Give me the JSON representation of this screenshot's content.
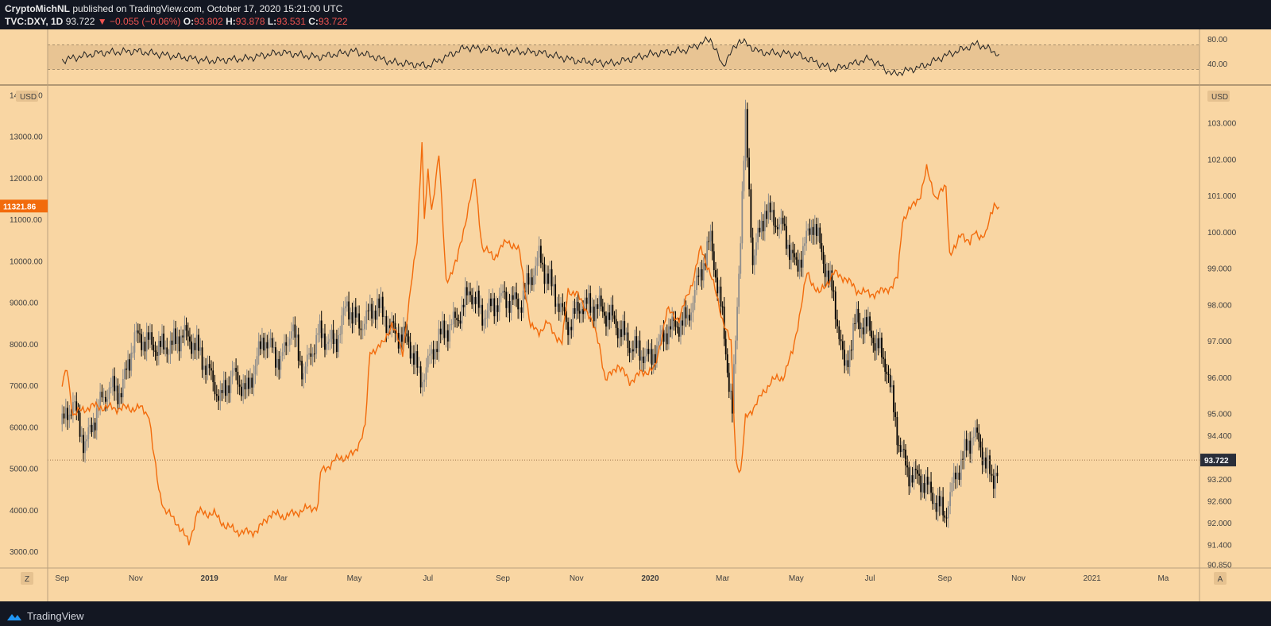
{
  "header": {
    "author": "CryptoMichNL",
    "published": "published on TradingView.com, October 17, 2020 15:21:00 UTC",
    "symbol": "TVC:DXY, 1D",
    "last": "93.722",
    "change": "−0.055 (−0.06%)",
    "o_label": "O:",
    "o": "93.802",
    "h_label": "H:",
    "h": "93.878",
    "l_label": "L:",
    "l": "93.531",
    "c_label": "C:",
    "c": "93.722"
  },
  "footer": {
    "brand": "TradingView",
    "brand_icon": "tradingview-logo-icon"
  },
  "colors": {
    "background": "#f9d6a3",
    "rsi_band": "#e8c493",
    "btc_line": "#f26b0c",
    "candle_up": "#8c8c8c",
    "candle_down": "#000000",
    "price_label_bg": "#2a2e39",
    "btc_label_bg": "#f26b0c"
  },
  "chart_data": {
    "type": "line",
    "left_axis": {
      "unit_label": "USD",
      "ticks": [
        "14000.00",
        "13000.00",
        "12000.00",
        "11000.00",
        "10000.00",
        "9000.00",
        "8000.00",
        "7000.00",
        "6000.00",
        "5000.00",
        "4000.00",
        "3000.00"
      ],
      "current_label": "11321.86"
    },
    "right_axis": {
      "unit_label": "USD",
      "ticks": [
        "103.000",
        "102.000",
        "101.000",
        "100.000",
        "99.000",
        "98.000",
        "97.000",
        "96.000",
        "95.000",
        "94.400",
        "93.200",
        "92.600",
        "92.000",
        "91.400",
        "90.850"
      ],
      "current_label": "93.722"
    },
    "rsi_axis": {
      "ticks": [
        "80.00",
        "40.00"
      ]
    },
    "x_axis": [
      {
        "label": "Sep",
        "date": "2018-09"
      },
      {
        "label": "Nov",
        "date": "2018-11"
      },
      {
        "label": "2019",
        "date": "2019-01",
        "bold": true
      },
      {
        "label": "Mar",
        "date": "2019-03"
      },
      {
        "label": "May",
        "date": "2019-05"
      },
      {
        "label": "Jul",
        "date": "2019-07"
      },
      {
        "label": "Sep",
        "date": "2019-09"
      },
      {
        "label": "Nov",
        "date": "2019-11"
      },
      {
        "label": "2020",
        "date": "2020-01",
        "bold": true
      },
      {
        "label": "Mar",
        "date": "2020-03"
      },
      {
        "label": "May",
        "date": "2020-05"
      },
      {
        "label": "Jul",
        "date": "2020-07"
      },
      {
        "label": "Sep",
        "date": "2020-09"
      },
      {
        "label": "Nov",
        "date": "2020-11"
      },
      {
        "label": "2021",
        "date": "2021-01"
      },
      {
        "label": "Ma",
        "date": "2021-03"
      }
    ],
    "corner_buttons": [
      "Z",
      "A"
    ],
    "series": [
      {
        "axis": "left",
        "kind": "line",
        "points": [
          [
            "2018-09-01",
            7000
          ],
          [
            "2018-09-05",
            7400
          ],
          [
            "2018-09-10",
            6300
          ],
          [
            "2018-09-25",
            6500
          ],
          [
            "2018-10-15",
            6450
          ],
          [
            "2018-11-05",
            6450
          ],
          [
            "2018-11-12",
            6300
          ],
          [
            "2018-11-15",
            5500
          ],
          [
            "2018-11-20",
            4500
          ],
          [
            "2018-11-25",
            4000
          ],
          [
            "2018-12-05",
            3700
          ],
          [
            "2018-12-15",
            3200
          ],
          [
            "2018-12-22",
            3950
          ],
          [
            "2019-01-05",
            3900
          ],
          [
            "2019-01-15",
            3600
          ],
          [
            "2019-01-28",
            3450
          ],
          [
            "2019-02-10",
            3500
          ],
          [
            "2019-02-20",
            3900
          ],
          [
            "2019-03-05",
            3850
          ],
          [
            "2019-03-20",
            4000
          ],
          [
            "2019-04-01",
            4100
          ],
          [
            "2019-04-03",
            4900
          ],
          [
            "2019-04-15",
            5200
          ],
          [
            "2019-05-01",
            5350
          ],
          [
            "2019-05-10",
            6000
          ],
          [
            "2019-05-14",
            7800
          ],
          [
            "2019-05-25",
            8000
          ],
          [
            "2019-06-01",
            8500
          ],
          [
            "2019-06-10",
            7800
          ],
          [
            "2019-06-22",
            10500
          ],
          [
            "2019-06-26",
            12900
          ],
          [
            "2019-06-28",
            11000
          ],
          [
            "2019-07-01",
            12100
          ],
          [
            "2019-07-04",
            11200
          ],
          [
            "2019-07-10",
            12600
          ],
          [
            "2019-07-16",
            9500
          ],
          [
            "2019-07-25",
            10000
          ],
          [
            "2019-08-05",
            11500
          ],
          [
            "2019-08-09",
            12000
          ],
          [
            "2019-08-15",
            10300
          ],
          [
            "2019-08-25",
            10100
          ],
          [
            "2019-09-05",
            10500
          ],
          [
            "2019-09-15",
            10200
          ],
          [
            "2019-09-24",
            8400
          ],
          [
            "2019-10-01",
            8300
          ],
          [
            "2019-10-08",
            8500
          ],
          [
            "2019-10-20",
            8000
          ],
          [
            "2019-10-25",
            9300
          ],
          [
            "2019-11-01",
            9200
          ],
          [
            "2019-11-10",
            8800
          ],
          [
            "2019-11-20",
            8000
          ],
          [
            "2019-11-25",
            7100
          ],
          [
            "2019-12-05",
            7500
          ],
          [
            "2019-12-15",
            7100
          ],
          [
            "2019-12-25",
            7300
          ],
          [
            "2020-01-05",
            7400
          ],
          [
            "2020-01-15",
            8800
          ],
          [
            "2020-01-25",
            8600
          ],
          [
            "2020-02-05",
            9500
          ],
          [
            "2020-02-12",
            10300
          ],
          [
            "2020-02-20",
            9700
          ],
          [
            "2020-03-01",
            8600
          ],
          [
            "2020-03-08",
            8000
          ],
          [
            "2020-03-12",
            5200
          ],
          [
            "2020-03-16",
            4900
          ],
          [
            "2020-03-20",
            6200
          ],
          [
            "2020-04-01",
            6700
          ],
          [
            "2020-04-10",
            7100
          ],
          [
            "2020-04-20",
            7200
          ],
          [
            "2020-04-28",
            7800
          ],
          [
            "2020-05-05",
            8900
          ],
          [
            "2020-05-10",
            9700
          ],
          [
            "2020-05-20",
            9200
          ],
          [
            "2020-06-01",
            9700
          ],
          [
            "2020-06-10",
            9600
          ],
          [
            "2020-06-20",
            9300
          ],
          [
            "2020-07-01",
            9200
          ],
          [
            "2020-07-10",
            9250
          ],
          [
            "2020-07-20",
            9400
          ],
          [
            "2020-07-24",
            9600
          ],
          [
            "2020-07-28",
            11000
          ],
          [
            "2020-08-05",
            11300
          ],
          [
            "2020-08-12",
            11600
          ],
          [
            "2020-08-17",
            12200
          ],
          [
            "2020-08-25",
            11500
          ],
          [
            "2020-09-02",
            11800
          ],
          [
            "2020-09-05",
            10200
          ],
          [
            "2020-09-10",
            10300
          ],
          [
            "2020-09-15",
            10700
          ],
          [
            "2020-09-22",
            10400
          ],
          [
            "2020-09-26",
            10700
          ],
          [
            "2020-10-01",
            10600
          ],
          [
            "2020-10-05",
            10600
          ],
          [
            "2020-10-09",
            11100
          ],
          [
            "2020-10-12",
            11400
          ],
          [
            "2020-10-16",
            11300
          ]
        ]
      },
      {
        "axis": "right",
        "kind": "candlestick",
        "points": [
          [
            "2018-09-01",
            94.7
          ],
          [
            "2018-09-10",
            95.3
          ],
          [
            "2018-09-20",
            94.1
          ],
          [
            "2018-10-01",
            95.2
          ],
          [
            "2018-10-10",
            95.7
          ],
          [
            "2018-10-20",
            95.6
          ],
          [
            "2018-10-31",
            97.1
          ],
          [
            "2018-11-10",
            97.0
          ],
          [
            "2018-11-20",
            96.8
          ],
          [
            "2018-12-01",
            96.9
          ],
          [
            "2018-12-10",
            97.2
          ],
          [
            "2018-12-20",
            96.9
          ],
          [
            "2019-01-01",
            96.1
          ],
          [
            "2019-01-10",
            95.4
          ],
          [
            "2019-01-20",
            96.1
          ],
          [
            "2019-02-01",
            95.6
          ],
          [
            "2019-02-15",
            97.1
          ],
          [
            "2019-03-01",
            96.4
          ],
          [
            "2019-03-10",
            97.4
          ],
          [
            "2019-03-20",
            96.1
          ],
          [
            "2019-04-01",
            97.2
          ],
          [
            "2019-04-15",
            96.9
          ],
          [
            "2019-04-25",
            98.0
          ],
          [
            "2019-05-05",
            97.4
          ],
          [
            "2019-05-20",
            98.0
          ],
          [
            "2019-06-01",
            97.3
          ],
          [
            "2019-06-15",
            97.0
          ],
          [
            "2019-06-25",
            95.9
          ],
          [
            "2019-07-10",
            97.1
          ],
          [
            "2019-07-25",
            97.6
          ],
          [
            "2019-08-05",
            98.4
          ],
          [
            "2019-08-15",
            97.7
          ],
          [
            "2019-09-01",
            98.2
          ],
          [
            "2019-09-15",
            98.0
          ],
          [
            "2019-10-01",
            99.3
          ],
          [
            "2019-10-10",
            98.6
          ],
          [
            "2019-10-25",
            97.4
          ],
          [
            "2019-11-05",
            98.0
          ],
          [
            "2019-11-20",
            97.9
          ],
          [
            "2019-12-01",
            97.6
          ],
          [
            "2019-12-15",
            96.9
          ],
          [
            "2020-01-01",
            96.5
          ],
          [
            "2020-01-15",
            97.3
          ],
          [
            "2020-02-01",
            97.6
          ],
          [
            "2020-02-10",
            98.7
          ],
          [
            "2020-02-20",
            99.8
          ],
          [
            "2020-03-01",
            97.6
          ],
          [
            "2020-03-09",
            95.0
          ],
          [
            "2020-03-20",
            103.0
          ],
          [
            "2020-03-26",
            99.2
          ],
          [
            "2020-04-05",
            100.6
          ],
          [
            "2020-04-20",
            100.1
          ],
          [
            "2020-05-01",
            99.0
          ],
          [
            "2020-05-15",
            100.3
          ],
          [
            "2020-06-01",
            98.2
          ],
          [
            "2020-06-10",
            96.2
          ],
          [
            "2020-06-20",
            97.6
          ],
          [
            "2020-07-01",
            97.3
          ],
          [
            "2020-07-15",
            96.3
          ],
          [
            "2020-07-25",
            94.2
          ],
          [
            "2020-08-01",
            93.4
          ],
          [
            "2020-08-15",
            93.1
          ],
          [
            "2020-09-01",
            92.2
          ],
          [
            "2020-09-10",
            93.3
          ],
          [
            "2020-09-25",
            94.5
          ],
          [
            "2020-10-05",
            93.7
          ],
          [
            "2020-10-10",
            93.1
          ],
          [
            "2020-10-16",
            93.72
          ]
        ]
      }
    ],
    "rsi": {
      "band": [
        30,
        70
      ],
      "points": [
        [
          "2018-09-01",
          45
        ],
        [
          "2018-10-01",
          57
        ],
        [
          "2018-11-01",
          60
        ],
        [
          "2018-12-01",
          52
        ],
        [
          "2019-01-01",
          44
        ],
        [
          "2019-02-01",
          48
        ],
        [
          "2019-03-01",
          58
        ],
        [
          "2019-04-01",
          50
        ],
        [
          "2019-05-01",
          60
        ],
        [
          "2019-06-01",
          42
        ],
        [
          "2019-07-01",
          36
        ],
        [
          "2019-08-01",
          66
        ],
        [
          "2019-09-01",
          60
        ],
        [
          "2019-10-01",
          58
        ],
        [
          "2019-11-01",
          44
        ],
        [
          "2019-12-01",
          40
        ],
        [
          "2020-01-01",
          55
        ],
        [
          "2020-02-01",
          62
        ],
        [
          "2020-02-20",
          80
        ],
        [
          "2020-03-01",
          36
        ],
        [
          "2020-03-15",
          78
        ],
        [
          "2020-04-01",
          58
        ],
        [
          "2020-05-01",
          55
        ],
        [
          "2020-06-01",
          30
        ],
        [
          "2020-07-01",
          48
        ],
        [
          "2020-07-20",
          22
        ],
        [
          "2020-08-15",
          36
        ],
        [
          "2020-09-01",
          52
        ],
        [
          "2020-09-28",
          72
        ],
        [
          "2020-10-16",
          55
        ]
      ]
    },
    "ylim_left": [
      2600,
      14200
    ],
    "ylim_right": [
      90.75,
      104.0
    ],
    "xlim": [
      "2018-08-20",
      "2021-03-31"
    ]
  }
}
